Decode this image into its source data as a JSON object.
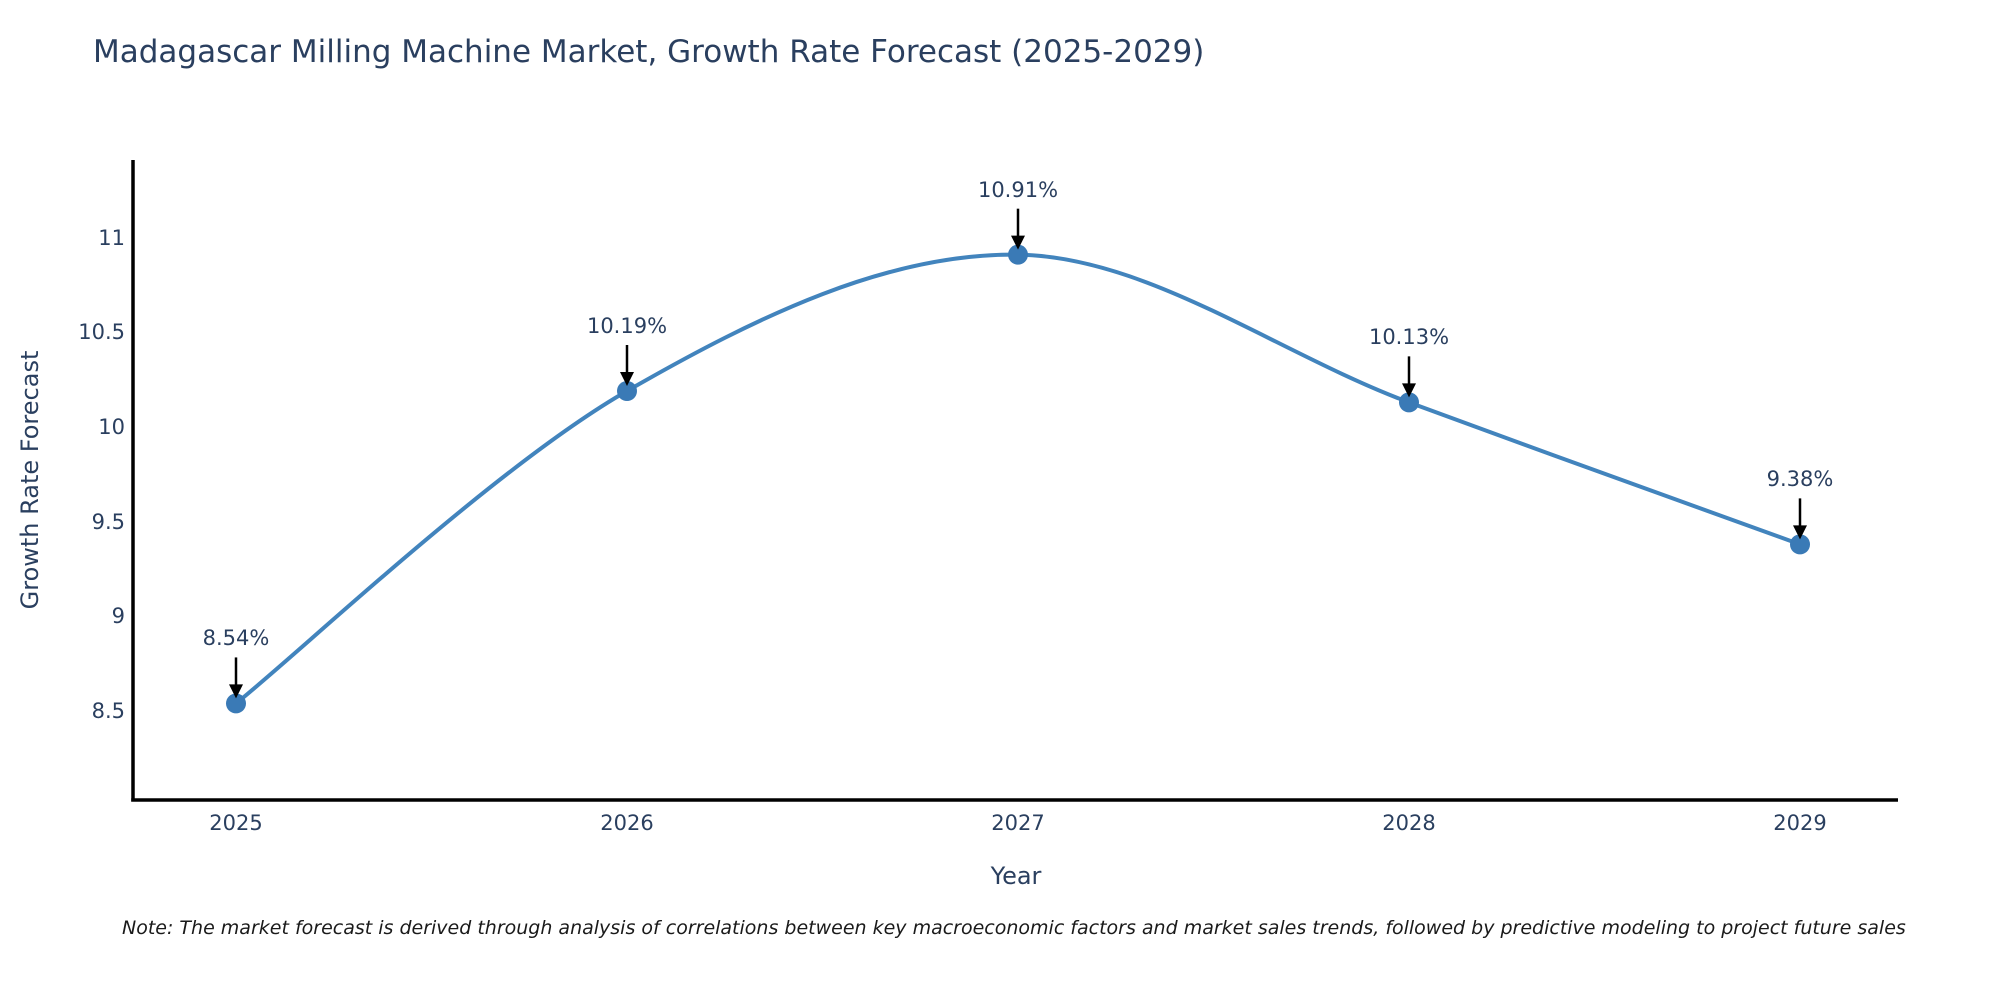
{
  "title": "Madagascar Milling Machine Market, Growth Rate Forecast (2025-2029)",
  "note": {
    "text": "Note: The market forecast is derived through analysis of correlations between key macroeconomic factors and market sales trends, followed by predictive modeling to project future sales"
  },
  "colors": {
    "line": "#4284bd",
    "marker": "#3a7ab6",
    "text": "#2a3f5f",
    "axis_line": "#000000",
    "arrow": "#000000",
    "background": "#ffffff"
  },
  "chart_data": {
    "type": "line",
    "title": "Madagascar Milling Machine Market, Growth Rate Forecast (2025-2029)",
    "xlabel": "Year",
    "ylabel": "Growth Rate Forecast",
    "categories": [
      "2025",
      "2026",
      "2027",
      "2028",
      "2029"
    ],
    "values": [
      8.54,
      10.19,
      10.91,
      10.13,
      9.38
    ],
    "point_labels": [
      "8.54%",
      "10.19%",
      "10.91%",
      "10.13%",
      "9.38%"
    ],
    "y_ticks": [
      8.5,
      9,
      9.5,
      10,
      10.5,
      11
    ],
    "ylim": [
      8.03,
      11.41
    ],
    "grid": false,
    "legend_position": "none",
    "line_shape": "spline",
    "annotations_style": "value label with downward black arrow onto each marker"
  }
}
